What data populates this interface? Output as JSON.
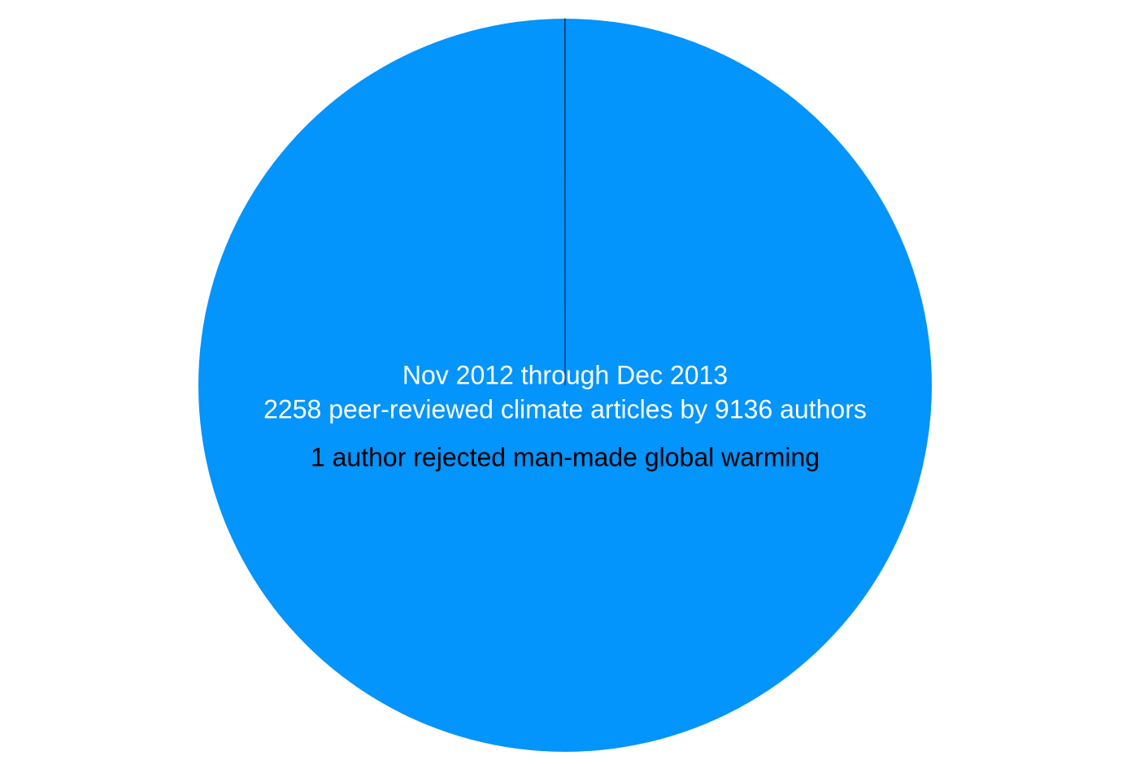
{
  "chart_data": {
    "type": "pie",
    "annotations": [
      "Nov 2012 through Dec 2013",
      "2258 peer-reviewed climate articles by 9136 authors",
      "1 author rejected man-made global warming"
    ],
    "annotation_colors": [
      "#ffffff",
      "#ffffff",
      "#000000"
    ],
    "categories": [
      null,
      null
    ],
    "series": [
      {
        "values": [
          9135,
          1
        ],
        "colors": [
          "#0394fc",
          "#1c1c4a"
        ]
      }
    ]
  }
}
